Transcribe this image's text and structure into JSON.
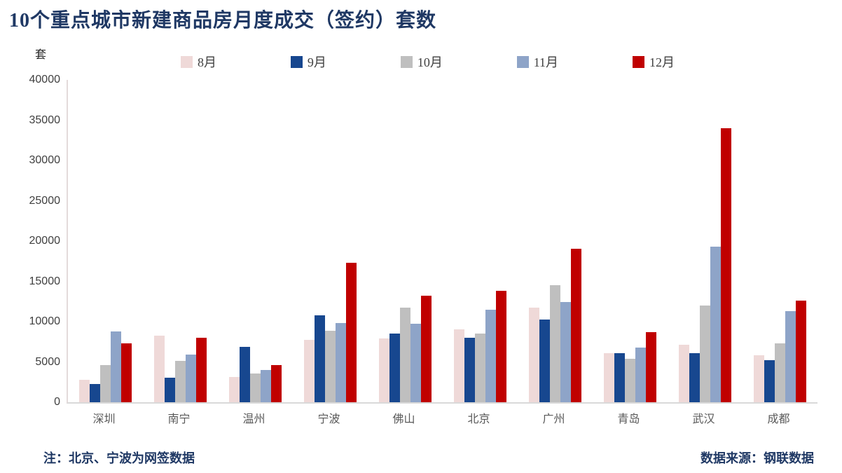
{
  "title": "10个重点城市新建商品房月度成交（签约）套数",
  "y_axis_unit": "套",
  "footer": {
    "note": "注：北京、宁波为网签数据",
    "source": "数据来源：钢联数据"
  },
  "colors": {
    "title_text": "#1F3864",
    "aug_pink": "#EFD9D8",
    "sep_blue": "#17478F",
    "oct_gray": "#BFBFBF",
    "nov_blue": "#8EA4C8",
    "dec_red": "#C00000",
    "axis_line": "#D9D9D9",
    "tick_text": "#404040",
    "city_text": "#595959"
  },
  "chart_data": {
    "type": "bar",
    "title": "10个重点城市新建商品房月度成交（签约）套数",
    "xlabel": "",
    "ylabel": "套",
    "ylim": [
      0,
      40000
    ],
    "yticks": [
      0,
      5000,
      10000,
      15000,
      20000,
      25000,
      30000,
      35000,
      40000
    ],
    "grid": false,
    "legend_position": "top",
    "categories": [
      "深圳",
      "南宁",
      "温州",
      "宁波",
      "佛山",
      "北京",
      "广州",
      "青岛",
      "武汉",
      "成都"
    ],
    "series": [
      {
        "name": "8月",
        "color": "#EFD9D8",
        "values": [
          2800,
          8300,
          3100,
          7700,
          7900,
          9000,
          11700,
          6100,
          7100,
          5800
        ]
      },
      {
        "name": "9月",
        "color": "#17478F",
        "values": [
          2300,
          3000,
          6900,
          10800,
          8500,
          8000,
          10300,
          6100,
          6100,
          5200
        ]
      },
      {
        "name": "10月",
        "color": "#BFBFBF",
        "values": [
          4600,
          5100,
          3600,
          8900,
          11700,
          8500,
          14500,
          5400,
          12000,
          7300
        ]
      },
      {
        "name": "11月",
        "color": "#8EA4C8",
        "values": [
          8800,
          5900,
          4000,
          9800,
          9700,
          11500,
          12400,
          6800,
          19300,
          11300
        ]
      },
      {
        "name": "12月",
        "color": "#C00000",
        "values": [
          7300,
          8000,
          4600,
          17300,
          13200,
          13800,
          19000,
          8700,
          34000,
          12600
        ]
      }
    ]
  }
}
